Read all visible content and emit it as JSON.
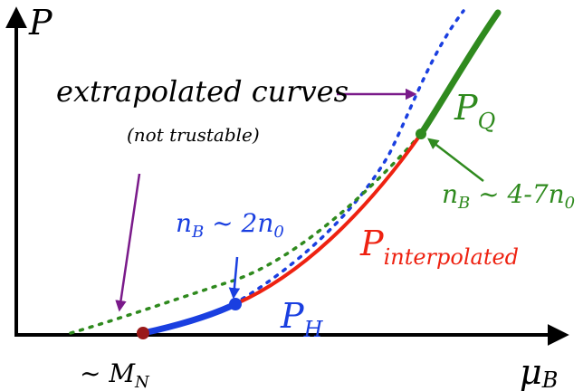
{
  "axes": {
    "y_label": "P",
    "x_label": "μ",
    "x_label_sub": "B"
  },
  "annotations": {
    "extrapolated_title": "extrapolated curves",
    "extrapolated_note": "(not trustable)",
    "mn_prefix": "~ M",
    "mn_sub": "N",
    "ph_main": "P",
    "ph_sub": "H",
    "pq_main": "P",
    "pq_sub": "Q",
    "pinterp_main": "P",
    "pinterp_sub": "interpolated",
    "nb_low_pre": "n",
    "nb_low_sub1": "B",
    "nb_low_mid": " ~ 2n",
    "nb_low_sub2": "0",
    "nb_high_pre": "n",
    "nb_high_sub1": "B",
    "nb_high_mid": " ~ 4-7n",
    "nb_high_sub2": "0"
  },
  "colors": {
    "axis": "#000000",
    "hadronic": "#1a3fe0",
    "interpolated": "#ee2211",
    "quark": "#2f8a1e",
    "arrow_note": "#7a1a8a",
    "endpoint_mn": "#9a1a1a"
  }
}
